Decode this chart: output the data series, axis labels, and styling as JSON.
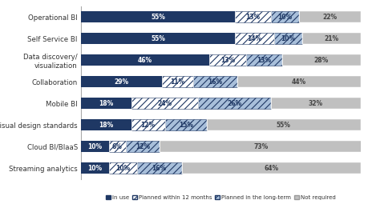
{
  "categories": [
    "Operational BI",
    "Self Service BI",
    "Data discovery/\nvisualization",
    "Collaboration",
    "Mobile BI",
    "Visual design standards",
    "Cloud BI/BIaaS",
    "Streaming analytics"
  ],
  "in_use": [
    55,
    55,
    46,
    29,
    18,
    18,
    10,
    10
  ],
  "planned_12": [
    13,
    14,
    13,
    11,
    24,
    12,
    6,
    10
  ],
  "planned_lt": [
    10,
    10,
    13,
    16,
    26,
    15,
    12,
    16
  ],
  "not_required": [
    22,
    21,
    28,
    44,
    32,
    55,
    73,
    64
  ],
  "color_in_use": "#1F3864",
  "color_planned_12": "#1F3864",
  "color_planned_lt": "#1F3864",
  "color_not_required": "#C0C0C0",
  "legend_labels": [
    "In use",
    "Planned within 12 months",
    "Planned in the long-term",
    "Not required"
  ],
  "bar_height": 0.52,
  "figsize": [
    4.59,
    2.6
  ],
  "dpi": 100
}
